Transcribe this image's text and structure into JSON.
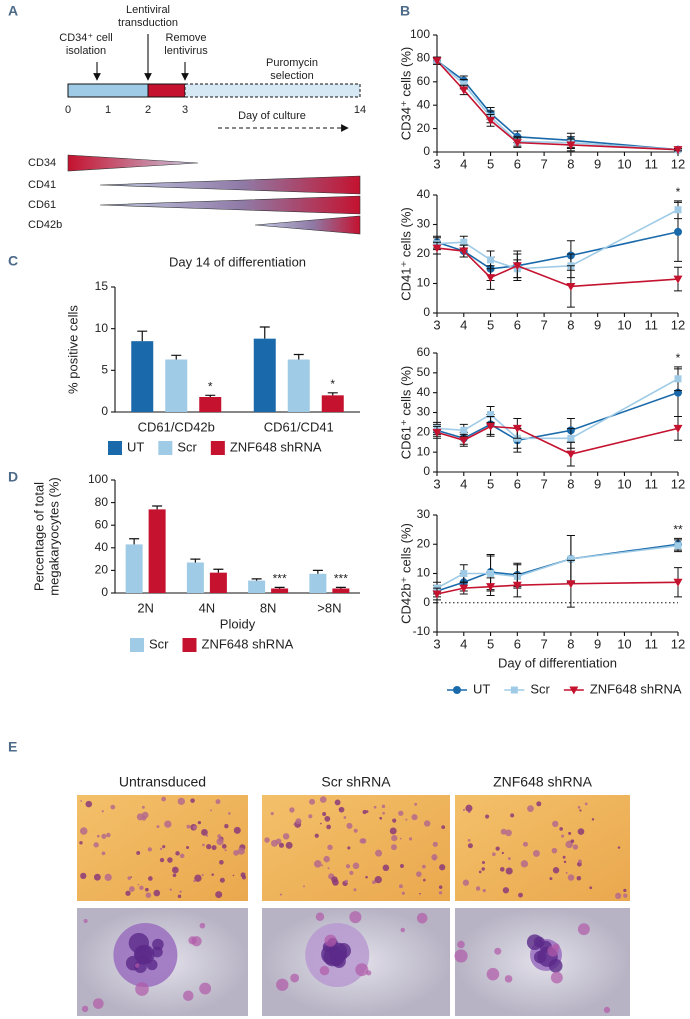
{
  "panels": [
    "A",
    "B",
    "C",
    "D",
    "E"
  ],
  "timeline": {
    "events": [
      {
        "label": [
          "CD34⁺ cell",
          "isolation"
        ]
      },
      {
        "label": [
          "Lentiviral",
          "transduction"
        ]
      },
      {
        "label": [
          "Remove",
          "lentivirus"
        ]
      }
    ],
    "phase": [
      "Puromycin",
      "selection"
    ],
    "days": [
      0,
      1,
      2,
      3,
      14
    ],
    "axis_label": "Day of culture",
    "markers": [
      "CD34",
      "CD41",
      "CD61",
      "CD42b"
    ]
  },
  "chart_data": [
    {
      "type": "bar",
      "title": "Day 14 of differentiation",
      "ylabel": "% positive cells",
      "categories": [
        "CD61/CD42b",
        "CD61/CD41"
      ],
      "ylim": [
        0,
        15
      ],
      "yticks": [
        0,
        5,
        10,
        15
      ],
      "series": [
        {
          "name": "UT",
          "color": "#1a6aab",
          "values": [
            8.5,
            8.8
          ],
          "errors": [
            1.2,
            1.4
          ]
        },
        {
          "name": "Scr",
          "color": "#9fcbe6",
          "values": [
            6.3,
            6.3
          ],
          "errors": [
            0.5,
            0.6
          ]
        },
        {
          "name": "ZNF648 shRNA",
          "color": "#c4122f",
          "values": [
            1.8,
            2.0
          ],
          "errors": [
            0.2,
            0.3
          ],
          "annotations": [
            "*",
            "*"
          ]
        }
      ]
    },
    {
      "type": "bar",
      "ylabel": [
        "Percentage of total",
        "megakaryocytes (%)"
      ],
      "xlabel": "Ploidy",
      "categories": [
        "2N",
        "4N",
        "8N",
        ">8N"
      ],
      "ylim": [
        0,
        100
      ],
      "yticks": [
        0,
        20,
        40,
        60,
        80,
        100
      ],
      "series": [
        {
          "name": "Scr",
          "color": "#9fcbe6",
          "values": [
            43,
            27,
            11,
            17
          ],
          "errors": [
            5,
            3,
            1.5,
            3
          ]
        },
        {
          "name": "ZNF648 shRNA",
          "color": "#c4122f",
          "values": [
            74,
            18,
            4,
            4
          ],
          "errors": [
            3,
            3,
            1,
            1
          ],
          "annotations": [
            null,
            null,
            "***",
            "***"
          ]
        }
      ]
    },
    {
      "type": "line",
      "ylabel": "CD34⁺ cells  (%)",
      "x": [
        3,
        4,
        5,
        6,
        8,
        12
      ],
      "xlim": [
        3,
        12
      ],
      "xticks": [
        3,
        4,
        5,
        6,
        7,
        8,
        9,
        10,
        11,
        12
      ],
      "ylim": [
        0,
        100
      ],
      "yticks": [
        0,
        20,
        40,
        60,
        80,
        100
      ],
      "series": [
        {
          "color": "#1a6aab",
          "marker": "circle",
          "values": [
            78,
            61,
            33,
            13,
            10,
            2
          ],
          "errors": [
            3,
            4,
            5,
            5,
            6,
            1
          ]
        },
        {
          "color": "#9fcbe6",
          "marker": "square",
          "values": [
            78,
            58,
            30,
            9,
            8,
            2
          ],
          "errors": [
            3,
            4,
            5,
            4,
            5,
            1
          ]
        },
        {
          "color": "#c4122f",
          "marker": "triangle-down",
          "values": [
            78,
            53,
            27,
            8,
            6,
            2
          ],
          "errors": [
            3,
            4,
            5,
            4,
            5,
            1
          ]
        }
      ]
    },
    {
      "type": "line",
      "ylabel": "CD41⁺ cells (%)",
      "annotation": "*",
      "x": [
        3,
        4,
        5,
        6,
        8,
        12
      ],
      "xlim": [
        3,
        12
      ],
      "xticks": [
        3,
        4,
        5,
        6,
        7,
        8,
        9,
        10,
        11,
        12
      ],
      "ylim": [
        0,
        40
      ],
      "yticks": [
        0,
        10,
        20,
        30,
        40
      ],
      "series": [
        {
          "color": "#1a6aab",
          "marker": "circle",
          "values": [
            24,
            21,
            15,
            16,
            19.5,
            27.5
          ],
          "errors": [
            2,
            2,
            4,
            4,
            5,
            10
          ]
        },
        {
          "color": "#9fcbe6",
          "marker": "square",
          "values": [
            23.5,
            24,
            18,
            15,
            16,
            35
          ],
          "errors": [
            2,
            2,
            3,
            3,
            4,
            3
          ]
        },
        {
          "color": "#c4122f",
          "marker": "triangle-down",
          "values": [
            22,
            21,
            12,
            16,
            9,
            11.5
          ],
          "errors": [
            2,
            2,
            4,
            5,
            7,
            4
          ]
        }
      ]
    },
    {
      "type": "line",
      "ylabel": "CD61⁺ cells (%)",
      "annotation": "*",
      "x": [
        3,
        4,
        5,
        6,
        8,
        12
      ],
      "xlim": [
        3,
        12
      ],
      "xticks": [
        3,
        4,
        5,
        6,
        7,
        8,
        9,
        10,
        11,
        12
      ],
      "ylim": [
        0,
        60
      ],
      "yticks": [
        0,
        10,
        20,
        30,
        40,
        50,
        60
      ],
      "series": [
        {
          "color": "#1a6aab",
          "marker": "circle",
          "values": [
            21,
            17,
            24,
            16,
            21,
            40
          ],
          "errors": [
            3,
            3,
            5,
            6,
            6,
            12
          ]
        },
        {
          "color": "#9fcbe6",
          "marker": "square",
          "values": [
            22,
            21,
            29,
            17,
            17,
            47
          ],
          "errors": [
            3,
            3,
            4,
            5,
            5,
            6
          ]
        },
        {
          "color": "#c4122f",
          "marker": "triangle-down",
          "values": [
            20,
            16,
            23,
            22,
            9,
            22
          ],
          "errors": [
            3,
            3,
            5,
            5,
            6,
            6
          ]
        }
      ]
    },
    {
      "type": "line",
      "ylabel": "CD42b⁺ cells (%)",
      "xlabel": "Day of differentiation",
      "annotation": "**",
      "hline": 0,
      "x": [
        3,
        4,
        5,
        6,
        8,
        12
      ],
      "xlim": [
        3,
        12
      ],
      "xticks": [
        3,
        4,
        5,
        6,
        7,
        8,
        9,
        10,
        11,
        12
      ],
      "ylim": [
        -10,
        30
      ],
      "yticks": [
        -10,
        0,
        10,
        20,
        30
      ],
      "series": [
        {
          "name": "UT",
          "color": "#1a6aab",
          "marker": "circle",
          "values": [
            4,
            7,
            10.5,
            9.5,
            15,
            20
          ],
          "errors": [
            2,
            3,
            6,
            4,
            8,
            2
          ]
        },
        {
          "name": "Scr",
          "color": "#9fcbe6",
          "marker": "square",
          "values": [
            5,
            10,
            10,
            9,
            15,
            19.5
          ],
          "errors": [
            2,
            3,
            6,
            4,
            8,
            2
          ]
        },
        {
          "name": "ZNF648 shRNA",
          "color": "#c4122f",
          "marker": "triangle-down",
          "values": [
            3,
            5,
            5.5,
            6,
            6.5,
            7
          ],
          "errors": [
            2,
            2,
            3,
            4,
            8,
            5
          ]
        }
      ]
    }
  ],
  "micrographs": {
    "columns": [
      "Untransduced",
      "Scr shRNA",
      "ZNF648 shRNA"
    ]
  }
}
